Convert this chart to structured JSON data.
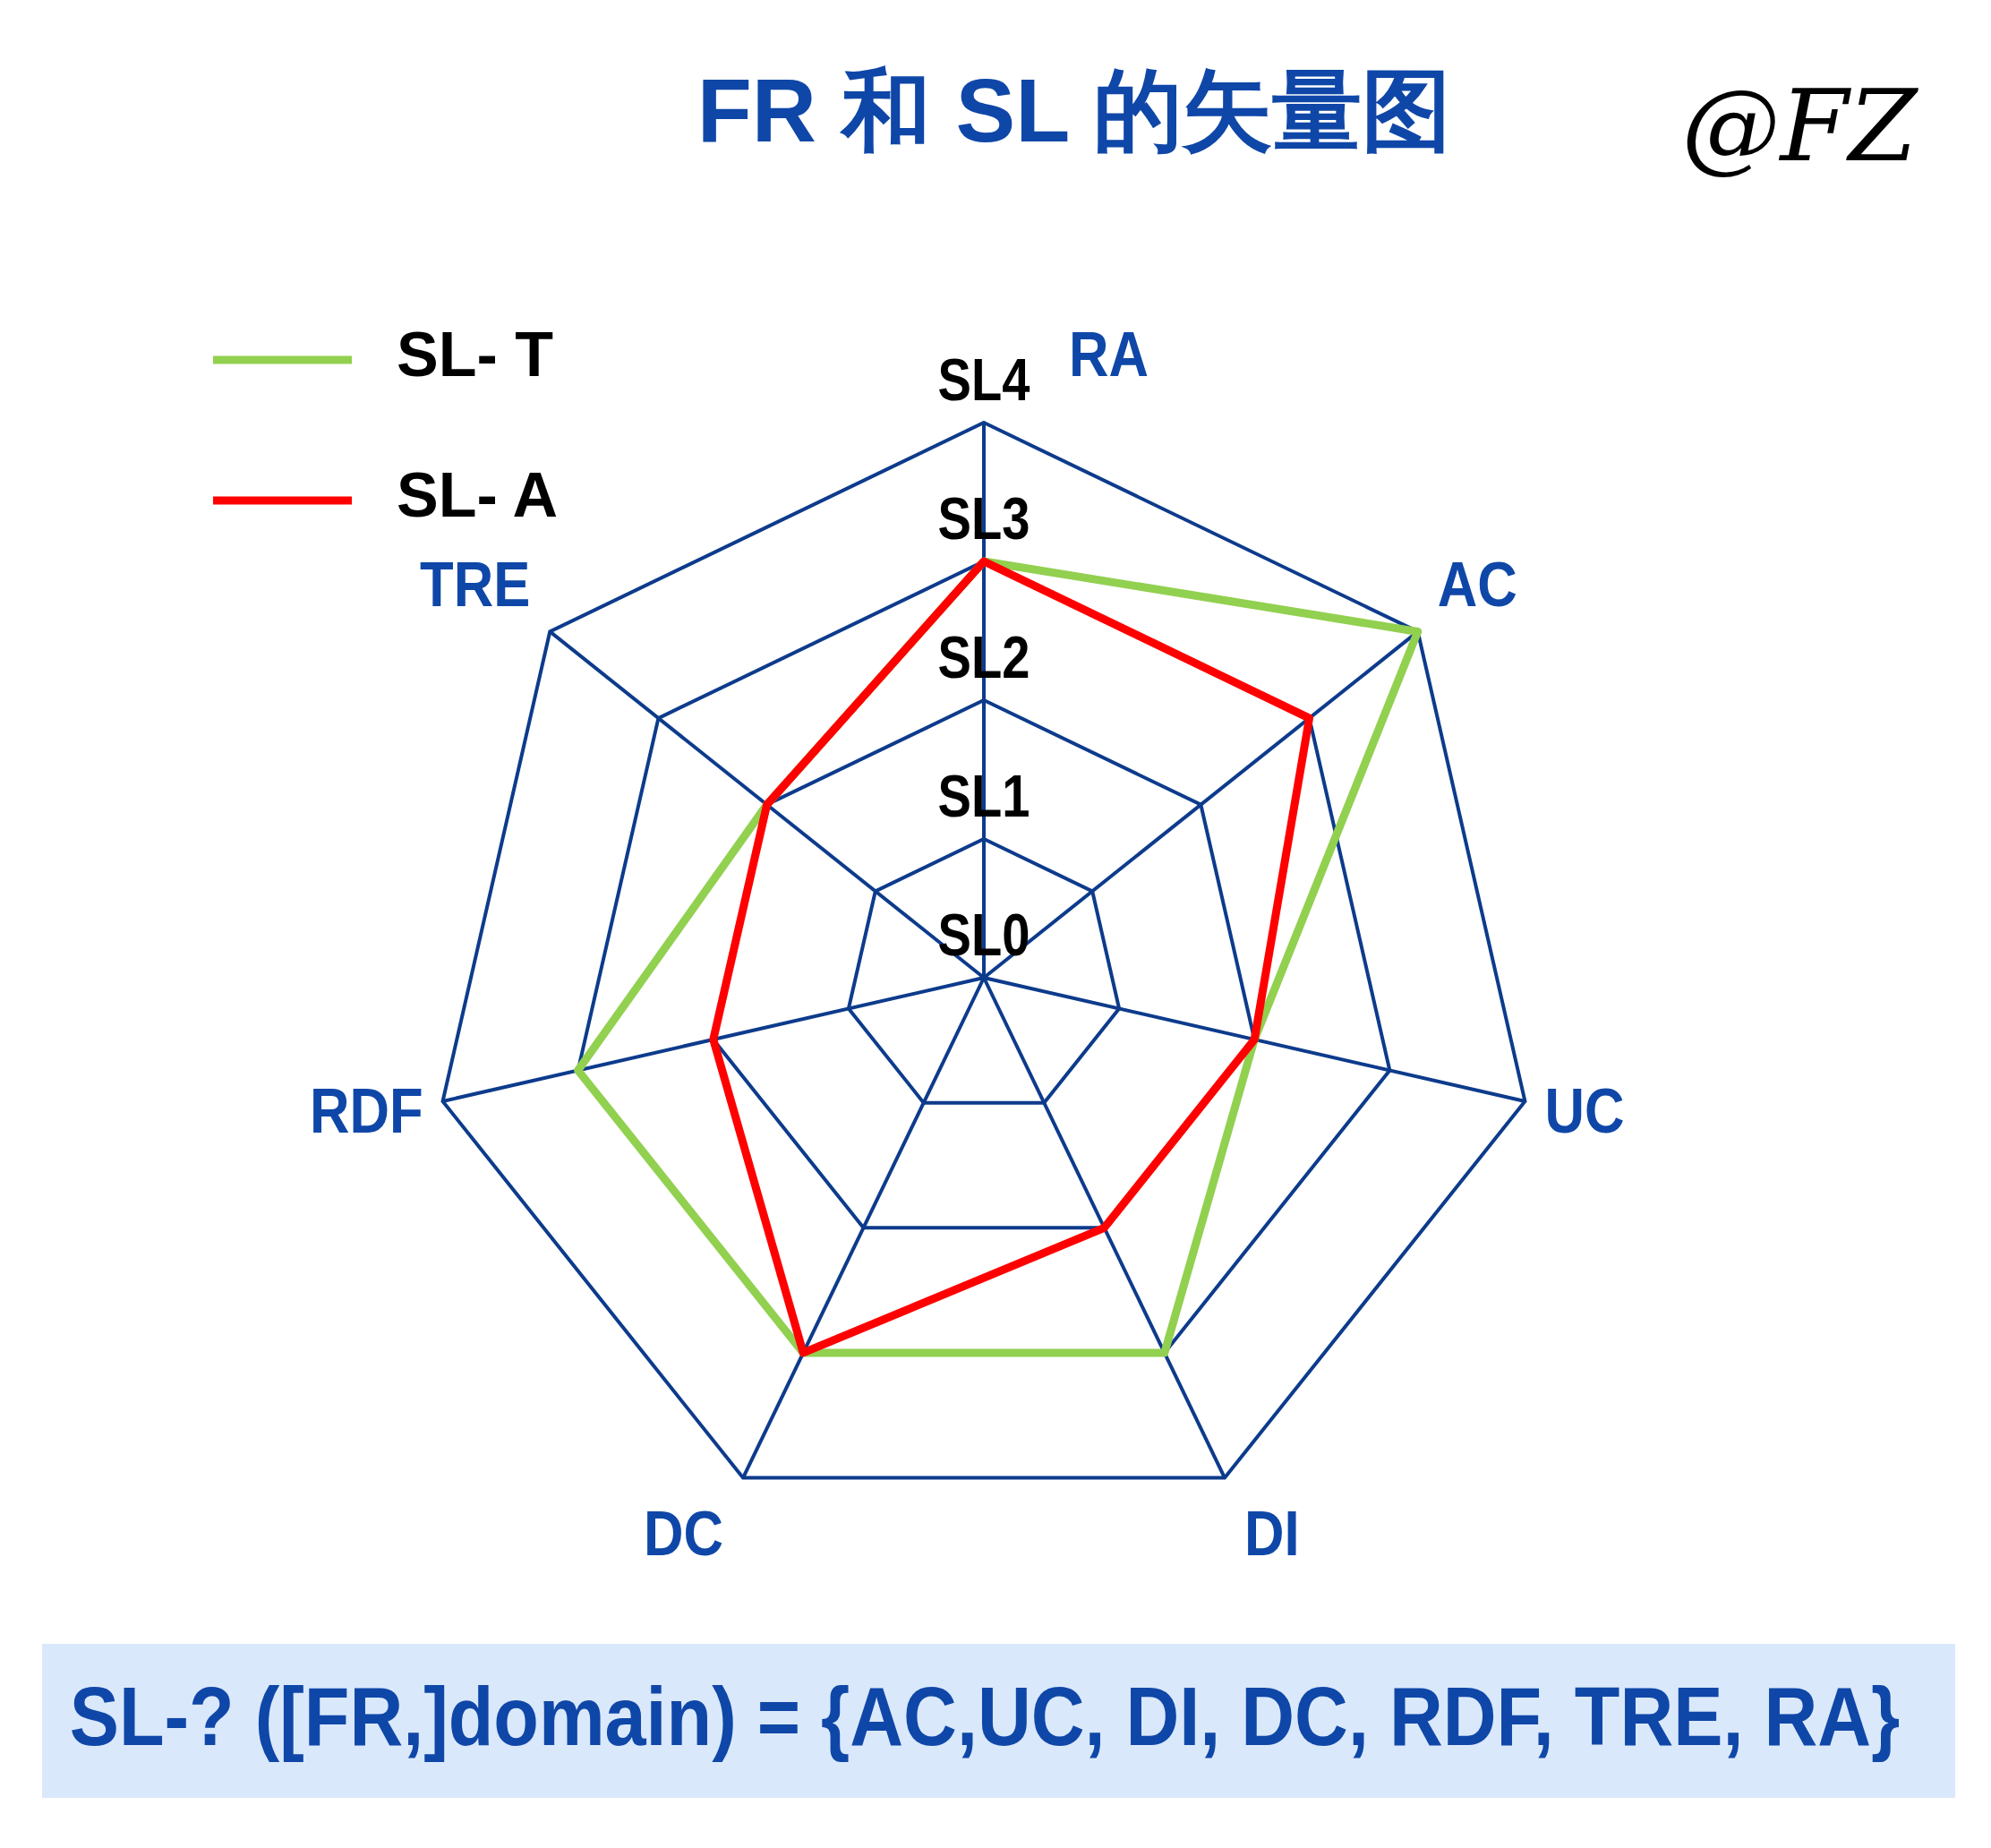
{
  "chart_data": {
    "type": "radar",
    "title": "FR 和 SL 的矢量图",
    "categories": [
      "RA",
      "AC",
      "UC",
      "DI",
      "DC",
      "RDF",
      "TRE"
    ],
    "series": [
      {
        "name": "SL- T",
        "color": "#92d050",
        "values": [
          3,
          4,
          2,
          3,
          3,
          3,
          2
        ]
      },
      {
        "name": "SL- A",
        "color": "#ff0000",
        "values": [
          3,
          3,
          2,
          2,
          3,
          2,
          2
        ]
      }
    ],
    "ylim": [
      0,
      4
    ],
    "yticks": [
      {
        "value": 0,
        "label": "SL0"
      },
      {
        "value": 1,
        "label": "SL1"
      },
      {
        "value": 2,
        "label": "SL2"
      },
      {
        "value": 3,
        "label": "SL3"
      },
      {
        "value": 4,
        "label": "SL4"
      }
    ],
    "grid": true,
    "legend": "top left",
    "annotations": [
      "@FZ",
      "SL-? ([FR,]domain) = {AC,UC, DI, DC, RDF, TRE, RA}"
    ]
  }
}
